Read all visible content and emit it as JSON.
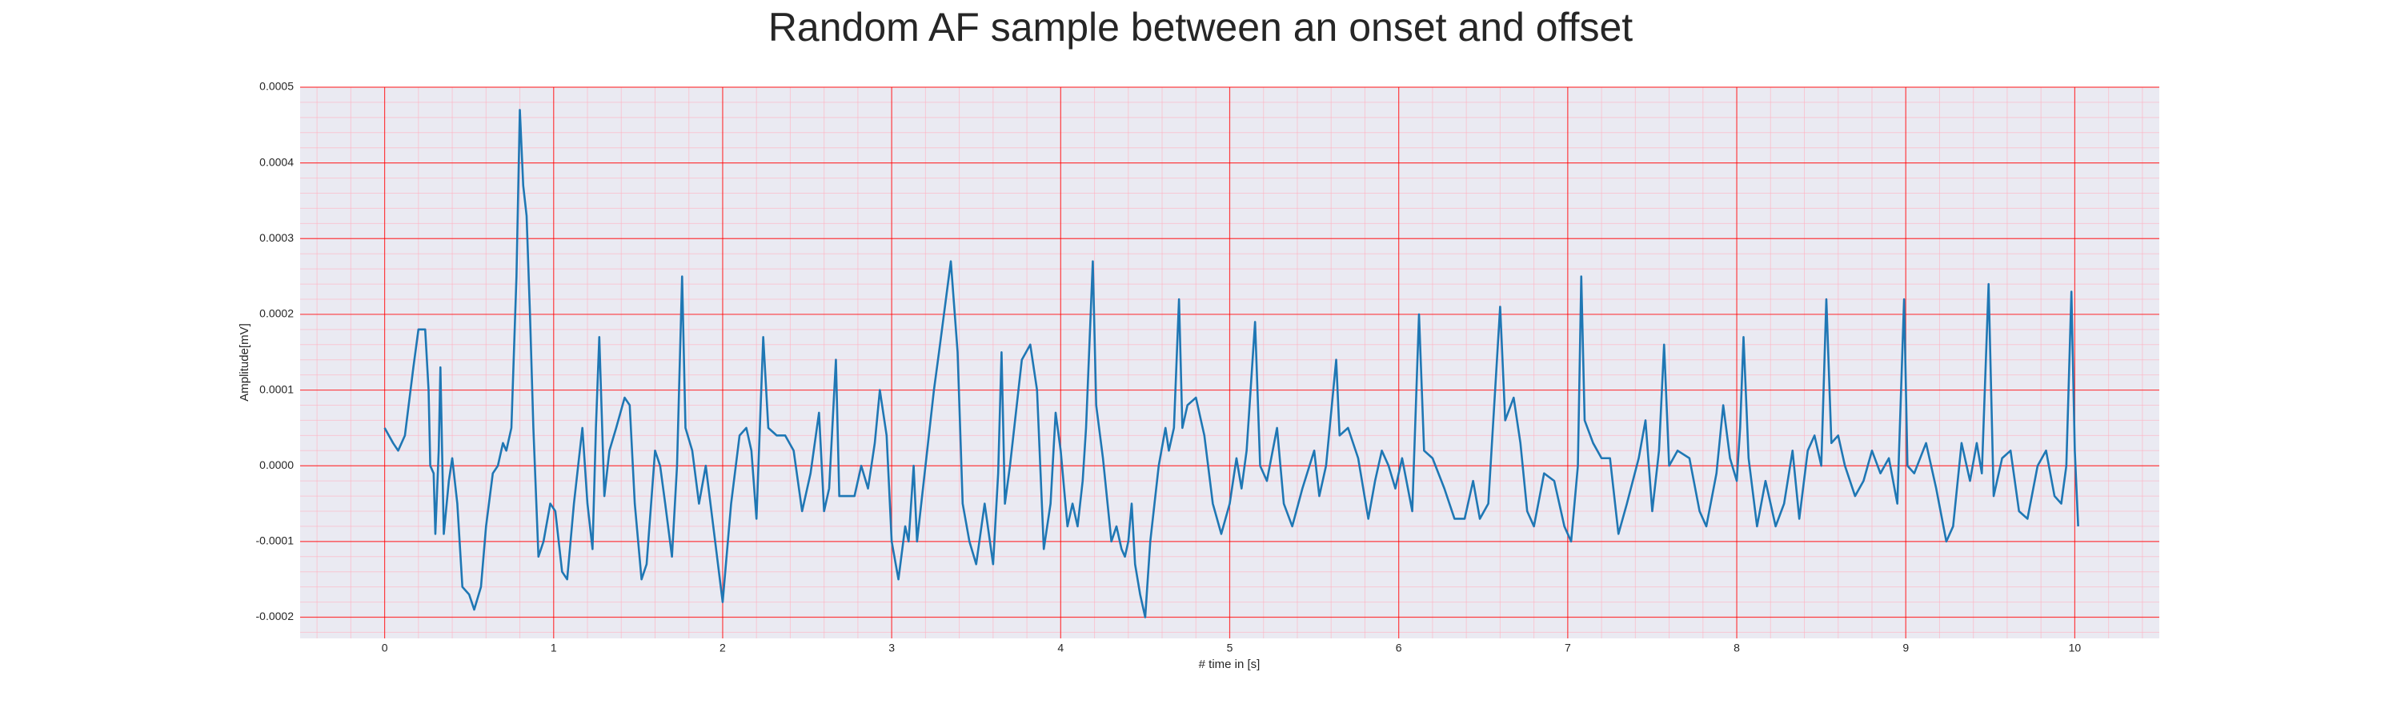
{
  "chart_data": {
    "type": "line",
    "title": "Random AF sample between an onset and offset",
    "xlabel": "# time in [s]",
    "ylabel": "Amplitude[mV]",
    "grid": true,
    "minor_grid": true,
    "grid_color": "#ff0000",
    "minor_grid_color": "#ffb0c0",
    "background": "#eaeaf2",
    "xlim": [
      -0.5,
      10.5
    ],
    "xticks": [
      0,
      1,
      2,
      3,
      4,
      5,
      6,
      7,
      8,
      9,
      10
    ],
    "ylim": [
      -0.000228,
      0.0005
    ],
    "yticks": [
      {
        "value": -0.0002,
        "label": "-0.0002"
      },
      {
        "value": -0.0001,
        "label": "-0.0001"
      },
      {
        "value": 0,
        "label": "0.0000"
      },
      {
        "value": 0.0001,
        "label": "0.0001"
      },
      {
        "value": 0.0002,
        "label": "0.0002"
      },
      {
        "value": 0.0003,
        "label": "0.0003"
      },
      {
        "value": 0.0004,
        "label": "0.0004"
      },
      {
        "value": 0.0005,
        "label": "0.0005"
      }
    ],
    "x": [
      0.0,
      0.05,
      0.08,
      0.12,
      0.17,
      0.2,
      0.24,
      0.26,
      0.27,
      0.29,
      0.3,
      0.32,
      0.33,
      0.35,
      0.38,
      0.4,
      0.43,
      0.46,
      0.5,
      0.53,
      0.57,
      0.6,
      0.64,
      0.67,
      0.7,
      0.72,
      0.75,
      0.78,
      0.8,
      0.82,
      0.84,
      0.86,
      0.88,
      0.91,
      0.94,
      0.98,
      1.01,
      1.05,
      1.08,
      1.12,
      1.17,
      1.2,
      1.23,
      1.25,
      1.27,
      1.3,
      1.33,
      1.37,
      1.42,
      1.45,
      1.48,
      1.52,
      1.55,
      1.6,
      1.63,
      1.66,
      1.7,
      1.73,
      1.76,
      1.78,
      1.82,
      1.86,
      1.9,
      1.95,
      2.0,
      2.05,
      2.1,
      2.14,
      2.17,
      2.2,
      2.24,
      2.27,
      2.32,
      2.37,
      2.42,
      2.47,
      2.52,
      2.57,
      2.6,
      2.63,
      2.67,
      2.69,
      2.73,
      2.78,
      2.82,
      2.86,
      2.9,
      2.93,
      2.97,
      3.0,
      3.04,
      3.08,
      3.1,
      3.13,
      3.15,
      3.2,
      3.25,
      3.28,
      3.35,
      3.39,
      3.42,
      3.46,
      3.5,
      3.55,
      3.6,
      3.63,
      3.65,
      3.67,
      3.7,
      3.77,
      3.82,
      3.86,
      3.9,
      3.94,
      3.97,
      4.0,
      4.04,
      4.07,
      4.1,
      4.13,
      4.15,
      4.19,
      4.21,
      4.25,
      4.3,
      4.33,
      4.36,
      4.38,
      4.4,
      4.42,
      4.44,
      4.47,
      4.5,
      4.53,
      4.58,
      4.62,
      4.64,
      4.67,
      4.7,
      4.72,
      4.75,
      4.8,
      4.85,
      4.9,
      4.95,
      5.0,
      5.04,
      5.07,
      5.1,
      5.15,
      5.18,
      5.22,
      5.28,
      5.32,
      5.37,
      5.43,
      5.5,
      5.53,
      5.57,
      5.63,
      5.65,
      5.7,
      5.76,
      5.82,
      5.86,
      5.9,
      5.94,
      5.98,
      6.02,
      6.08,
      6.12,
      6.15,
      6.2,
      6.27,
      6.33,
      6.39,
      6.44,
      6.48,
      6.53,
      6.6,
      6.63,
      6.68,
      6.72,
      6.76,
      6.8,
      6.86,
      6.92,
      6.98,
      7.02,
      7.06,
      7.08,
      7.1,
      7.15,
      7.2,
      7.25,
      7.3,
      7.35,
      7.42,
      7.46,
      7.5,
      7.54,
      7.57,
      7.6,
      7.65,
      7.72,
      7.78,
      7.82,
      7.88,
      7.92,
      7.96,
      8.0,
      8.02,
      8.04,
      8.07,
      8.12,
      8.17,
      8.23,
      8.28,
      8.33,
      8.37,
      8.42,
      8.46,
      8.5,
      8.53,
      8.56,
      8.6,
      8.64,
      8.7,
      8.75,
      8.8,
      8.85,
      8.9,
      8.95,
      8.99,
      9.01,
      9.05,
      9.12,
      9.18,
      9.24,
      9.28,
      9.33,
      9.38,
      9.42,
      9.45,
      9.49,
      9.52,
      9.57,
      9.62,
      9.67,
      9.72,
      9.78,
      9.83,
      9.88,
      9.92,
      9.95,
      9.98,
      10.0,
      10.02
    ],
    "series": [
      {
        "color": "#1f77b4",
        "values": [
          5e-05,
          3e-05,
          2e-05,
          4e-05,
          0.00013,
          0.00018,
          0.00018,
          0.0001,
          0,
          -1e-05,
          -9e-05,
          2e-05,
          0.00013,
          -9e-05,
          -2e-05,
          1e-05,
          -5e-05,
          -0.00016,
          -0.00017,
          -0.00019,
          -0.00016,
          -8e-05,
          -1e-05,
          0,
          3e-05,
          2e-05,
          5e-05,
          0.00025,
          0.00047,
          0.00037,
          0.00033,
          0.0002,
          5e-05,
          -0.00012,
          -0.0001,
          -5e-05,
          -6e-05,
          -0.00014,
          -0.00015,
          -5e-05,
          5e-05,
          -5e-05,
          -0.00011,
          5e-05,
          0.00017,
          -4e-05,
          2e-05,
          5e-05,
          9e-05,
          8e-05,
          -5e-05,
          -0.00015,
          -0.00013,
          2e-05,
          0,
          -5e-05,
          -0.00012,
          0,
          0.00025,
          5e-05,
          2e-05,
          -5e-05,
          0,
          -9e-05,
          -0.00018,
          -5e-05,
          4e-05,
          5e-05,
          2e-05,
          -7e-05,
          0.00017,
          5e-05,
          4e-05,
          4e-05,
          2e-05,
          -6e-05,
          -1e-05,
          7e-05,
          -6e-05,
          -3e-05,
          0.00014,
          -4e-05,
          -4e-05,
          -4e-05,
          0,
          -3e-05,
          3e-05,
          0.0001,
          4e-05,
          -0.0001,
          -0.00015,
          -8e-05,
          -0.0001,
          0,
          -0.0001,
          0,
          0.0001,
          0.00015,
          0.00027,
          0.00015,
          -5e-05,
          -0.0001,
          -0.00013,
          -5e-05,
          -0.00013,
          -1e-05,
          0.00015,
          -5e-05,
          0,
          0.00014,
          0.00016,
          0.0001,
          -0.00011,
          -5e-05,
          7e-05,
          2e-05,
          -8e-05,
          -5e-05,
          -8e-05,
          -2e-05,
          5e-05,
          0.00027,
          8e-05,
          1e-05,
          -0.0001,
          -8e-05,
          -0.00011,
          -0.00012,
          -0.0001,
          -5e-05,
          -0.00013,
          -0.00017,
          -0.0002,
          -0.0001,
          0,
          5e-05,
          2e-05,
          5e-05,
          0.00022,
          5e-05,
          8e-05,
          9e-05,
          4e-05,
          -5e-05,
          -9e-05,
          -5e-05,
          1e-05,
          -3e-05,
          2e-05,
          0.00019,
          0,
          -2e-05,
          5e-05,
          -5e-05,
          -8e-05,
          -3e-05,
          2e-05,
          -4e-05,
          0,
          0.00014,
          4e-05,
          5e-05,
          1e-05,
          -7e-05,
          -2e-05,
          2e-05,
          0,
          -3e-05,
          1e-05,
          -6e-05,
          0.0002,
          2e-05,
          1e-05,
          -3e-05,
          -7e-05,
          -7e-05,
          -2e-05,
          -7e-05,
          -5e-05,
          0.00021,
          6e-05,
          9e-05,
          3e-05,
          -6e-05,
          -8e-05,
          -1e-05,
          -2e-05,
          -8e-05,
          -0.0001,
          0,
          0.00025,
          6e-05,
          3e-05,
          1e-05,
          1e-05,
          -9e-05,
          -5e-05,
          1e-05,
          6e-05,
          -6e-05,
          2e-05,
          0.00016,
          0,
          2e-05,
          1e-05,
          -6e-05,
          -8e-05,
          -1e-05,
          8e-05,
          1e-05,
          -2e-05,
          5e-05,
          0.00017,
          1e-05,
          -8e-05,
          -2e-05,
          -8e-05,
          -5e-05,
          2e-05,
          -7e-05,
          2e-05,
          4e-05,
          0,
          0.00022,
          3e-05,
          4e-05,
          0,
          -4e-05,
          -2e-05,
          2e-05,
          -1e-05,
          1e-05,
          -5e-05,
          0.00022,
          0,
          -1e-05,
          3e-05,
          -3e-05,
          -0.0001,
          -8e-05,
          3e-05,
          -2e-05,
          3e-05,
          -1e-05,
          0.00024,
          -4e-05,
          1e-05,
          2e-05,
          -6e-05,
          -7e-05,
          0,
          2e-05,
          -4e-05,
          -5e-05,
          0,
          0.00023,
          2e-05,
          -8e-05
        ]
      }
    ]
  }
}
